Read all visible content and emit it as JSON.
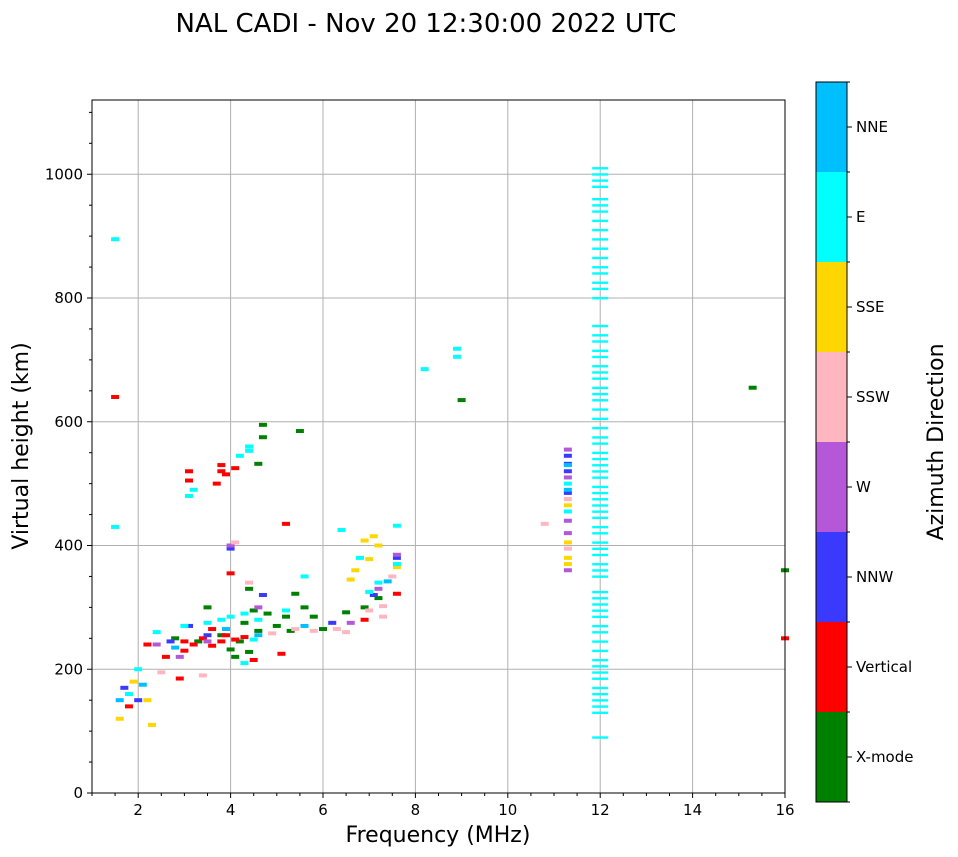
{
  "chart_data": {
    "type": "scatter",
    "title": "NAL CADI - Nov 20 12:30:00 2022 UTC",
    "xlabel": "Frequency (MHz)",
    "ylabel": "Virtual height (km)",
    "xlim": [
      1,
      16
    ],
    "ylim": [
      0,
      1120
    ],
    "xticks": [
      2,
      4,
      6,
      8,
      10,
      12,
      14,
      16
    ],
    "yticks": [
      0,
      200,
      400,
      600,
      800,
      1000
    ],
    "grid": true,
    "colorbar": {
      "label": "Azimuth Direction",
      "categories": [
        "X-mode",
        "Vertical",
        "NNW",
        "W",
        "SSW",
        "SSE",
        "E",
        "NNE"
      ],
      "colors": [
        "#008000",
        "#ff0000",
        "#3a3aff",
        "#b457d8",
        "#ffb6c1",
        "#ffd700",
        "#00ffff",
        "#00bfff"
      ]
    },
    "series": [
      {
        "name": "X-mode",
        "points": [
          [
            4.7,
            595
          ],
          [
            4.7,
            575
          ],
          [
            4.6,
            532
          ],
          [
            5.5,
            585
          ],
          [
            3.5,
            300
          ],
          [
            3.8,
            255
          ],
          [
            4.0,
            232
          ],
          [
            4.2,
            245
          ],
          [
            4.4,
            330
          ],
          [
            4.5,
            295
          ],
          [
            4.3,
            275
          ],
          [
            4.6,
            262
          ],
          [
            4.8,
            290
          ],
          [
            5.0,
            270
          ],
          [
            5.2,
            285
          ],
          [
            5.4,
            322
          ],
          [
            5.6,
            300
          ],
          [
            5.8,
            285
          ],
          [
            5.3,
            262
          ],
          [
            6.0,
            265
          ],
          [
            6.5,
            292
          ],
          [
            6.9,
            300
          ],
          [
            7.2,
            315
          ],
          [
            4.4,
            228
          ],
          [
            4.1,
            220
          ],
          [
            2.8,
            250
          ],
          [
            3.3,
            245
          ],
          [
            9.0,
            635
          ],
          [
            15.3,
            655
          ],
          [
            16.0,
            360
          ]
        ]
      },
      {
        "name": "Vertical",
        "points": [
          [
            3.1,
            520
          ],
          [
            3.1,
            505
          ],
          [
            3.8,
            530
          ],
          [
            3.9,
            515
          ],
          [
            3.7,
            500
          ],
          [
            3.8,
            520
          ],
          [
            4.1,
            525
          ],
          [
            3.0,
            245
          ],
          [
            3.2,
            240
          ],
          [
            3.4,
            250
          ],
          [
            3.6,
            238
          ],
          [
            3.8,
            245
          ],
          [
            3.9,
            255
          ],
          [
            4.1,
            248
          ],
          [
            4.3,
            252
          ],
          [
            2.6,
            220
          ],
          [
            2.2,
            240
          ],
          [
            3.0,
            230
          ],
          [
            3.6,
            265
          ],
          [
            5.1,
            225
          ],
          [
            4.5,
            215
          ],
          [
            5.2,
            435
          ],
          [
            4.0,
            355
          ],
          [
            7.6,
            322
          ],
          [
            6.9,
            280
          ],
          [
            2.9,
            185
          ],
          [
            1.8,
            140
          ],
          [
            16.0,
            250
          ],
          [
            1.5,
            640
          ]
        ]
      },
      {
        "name": "NNW",
        "points": [
          [
            11.3,
            520
          ],
          [
            11.3,
            532
          ],
          [
            11.3,
            545
          ],
          [
            11.3,
            485
          ],
          [
            3.1,
            270
          ],
          [
            3.5,
            255
          ],
          [
            2.7,
            245
          ],
          [
            4.7,
            320
          ],
          [
            6.2,
            275
          ],
          [
            7.1,
            320
          ],
          [
            7.6,
            380
          ],
          [
            1.7,
            170
          ],
          [
            2.0,
            150
          ],
          [
            4.0,
            395
          ]
        ]
      },
      {
        "name": "W",
        "points": [
          [
            11.3,
            555
          ],
          [
            11.3,
            510
          ],
          [
            11.3,
            440
          ],
          [
            11.3,
            360
          ],
          [
            11.3,
            420
          ],
          [
            2.4,
            240
          ],
          [
            3.5,
            245
          ],
          [
            4.6,
            300
          ],
          [
            6.6,
            275
          ],
          [
            7.2,
            330
          ],
          [
            7.6,
            385
          ],
          [
            4.0,
            400
          ],
          [
            2.9,
            220
          ]
        ]
      },
      {
        "name": "SSW",
        "points": [
          [
            11.3,
            475
          ],
          [
            11.3,
            395
          ],
          [
            10.8,
            435
          ],
          [
            4.1,
            405
          ],
          [
            5.4,
            265
          ],
          [
            5.8,
            262
          ],
          [
            6.3,
            265
          ],
          [
            6.5,
            260
          ],
          [
            7.0,
            295
          ],
          [
            7.3,
            285
          ],
          [
            7.5,
            350
          ],
          [
            7.3,
            302
          ],
          [
            2.5,
            195
          ],
          [
            3.4,
            190
          ],
          [
            4.4,
            340
          ],
          [
            4.9,
            258
          ]
        ]
      },
      {
        "name": "SSE",
        "points": [
          [
            11.3,
            465
          ],
          [
            11.3,
            405
          ],
          [
            11.3,
            380
          ],
          [
            11.3,
            370
          ],
          [
            6.7,
            360
          ],
          [
            6.9,
            408
          ],
          [
            7.1,
            415
          ],
          [
            7.2,
            400
          ],
          [
            7.6,
            365
          ],
          [
            6.6,
            345
          ],
          [
            7.0,
            378
          ],
          [
            2.2,
            150
          ],
          [
            1.9,
            180
          ],
          [
            1.6,
            120
          ],
          [
            2.3,
            110
          ]
        ]
      },
      {
        "name": "E",
        "points": [
          [
            8.9,
            718
          ],
          [
            8.9,
            705
          ],
          [
            8.2,
            685
          ],
          [
            11.3,
            500
          ],
          [
            11.3,
            455
          ],
          [
            4.2,
            545
          ],
          [
            4.4,
            553
          ],
          [
            4.4,
            560
          ],
          [
            3.2,
            490
          ],
          [
            3.1,
            480
          ],
          [
            3.0,
            270
          ],
          [
            3.5,
            275
          ],
          [
            3.8,
            280
          ],
          [
            4.0,
            285
          ],
          [
            4.3,
            290
          ],
          [
            4.6,
            280
          ],
          [
            5.2,
            295
          ],
          [
            5.6,
            350
          ],
          [
            6.4,
            425
          ],
          [
            6.8,
            380
          ],
          [
            7.2,
            340
          ],
          [
            7.6,
            370
          ],
          [
            7.6,
            432
          ],
          [
            7.0,
            325
          ],
          [
            4.3,
            210
          ],
          [
            4.5,
            248
          ],
          [
            2.4,
            260
          ],
          [
            1.8,
            160
          ],
          [
            2.0,
            200
          ],
          [
            1.5,
            895
          ],
          [
            1.5,
            430
          ]
        ]
      },
      {
        "name": "NNE",
        "points": [
          [
            11.3,
            530
          ],
          [
            11.3,
            490
          ],
          [
            3.9,
            265
          ],
          [
            2.8,
            235
          ],
          [
            4.6,
            255
          ],
          [
            5.6,
            270
          ],
          [
            7.4,
            342
          ],
          [
            2.1,
            175
          ],
          [
            1.6,
            150
          ]
        ]
      }
    ],
    "vertical_lines": [
      {
        "name": "E",
        "x": 12.0,
        "y_values": [
          1010,
          1000,
          990,
          980,
          960,
          950,
          940,
          925,
          910,
          895,
          880,
          865,
          850,
          840,
          825,
          815,
          800,
          755,
          740,
          730,
          715,
          705,
          690,
          680,
          670,
          655,
          645,
          635,
          620,
          605,
          590,
          575,
          565,
          550,
          540,
          530,
          520,
          510,
          495,
          485,
          475,
          465,
          455,
          445,
          430,
          420,
          405,
          395,
          385,
          370,
          360,
          350,
          325,
          315,
          305,
          295,
          285,
          270,
          260,
          245,
          230,
          215,
          205,
          195,
          185,
          170,
          160,
          150,
          140,
          130,
          90
        ]
      }
    ]
  }
}
